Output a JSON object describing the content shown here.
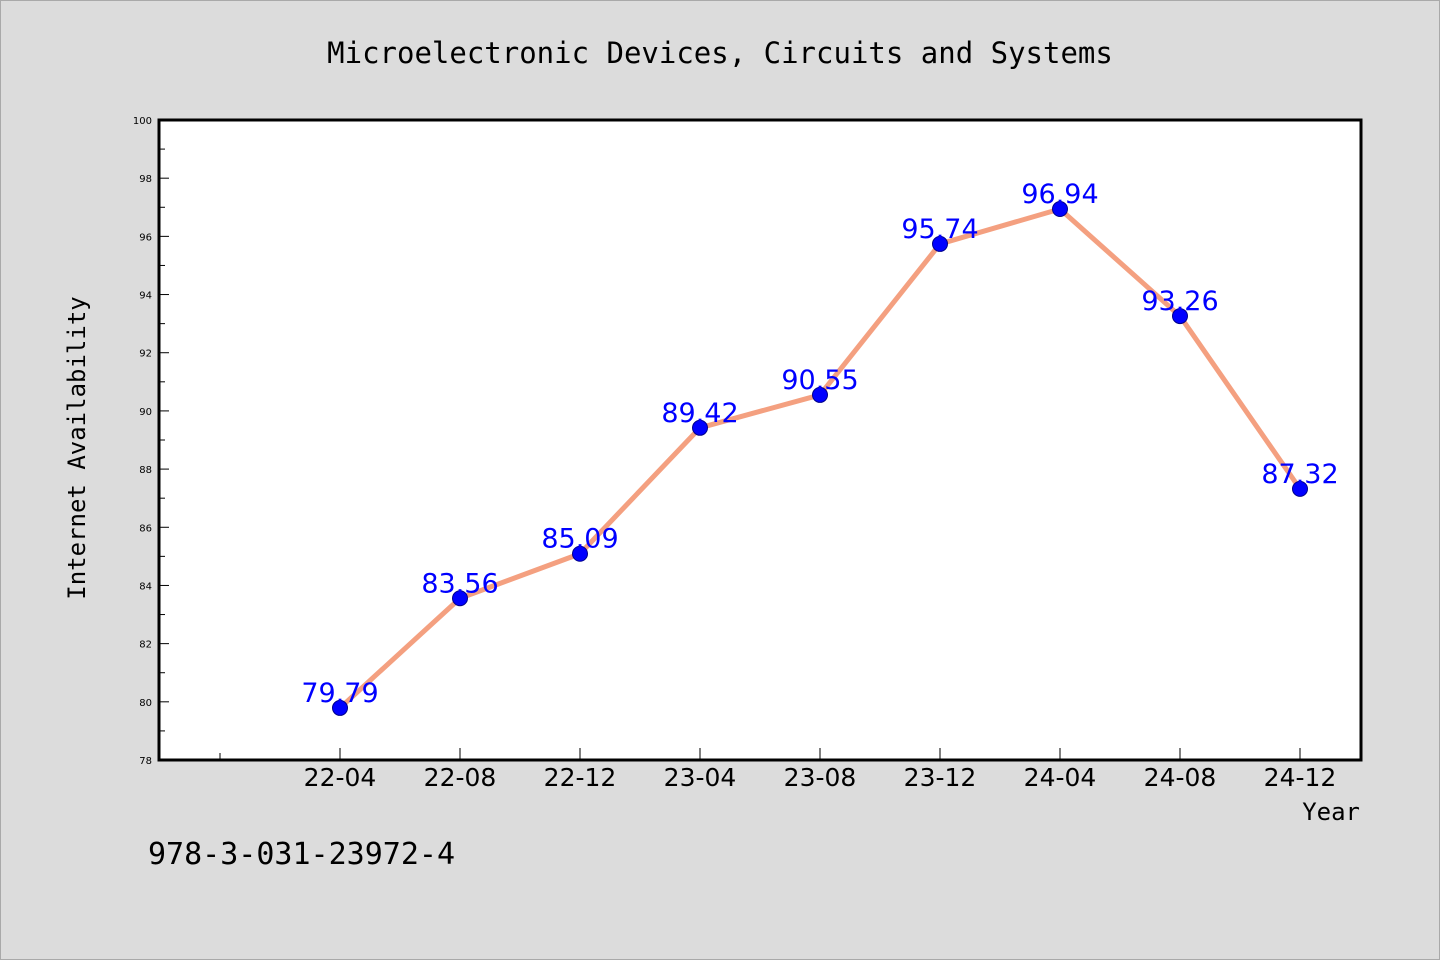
{
  "footer_code": "978-3-031-23972-4",
  "colors": {
    "background": "#dcdcdc",
    "plot_background": "#ffffff",
    "line": "#f4a080",
    "marker": "#0000ff",
    "data_label": "#0000ff"
  },
  "chart_data": {
    "type": "line",
    "title": "Microelectronic Devices, Circuits and Systems",
    "xlabel": "Year",
    "ylabel": "Internet Availability",
    "categories": [
      "22-04",
      "22-08",
      "22-12",
      "23-04",
      "23-08",
      "23-12",
      "24-04",
      "24-08",
      "24-12"
    ],
    "series": [
      {
        "values": [
          79.79,
          83.56,
          85.09,
          89.42,
          90.55,
          95.74,
          96.94,
          93.26,
          87.32
        ]
      }
    ],
    "data_labels": [
      "79.79",
      "83.56",
      "85.09",
      "89.42",
      "90.55",
      "95.74",
      "96.94",
      "93.26",
      "87.32"
    ],
    "ylim": [
      78,
      100
    ],
    "yticks": [
      "78",
      "80",
      "82",
      "84",
      "86",
      "88",
      "90",
      "92",
      "94",
      "96",
      "98",
      "100"
    ],
    "grid": false,
    "legend": "none"
  }
}
